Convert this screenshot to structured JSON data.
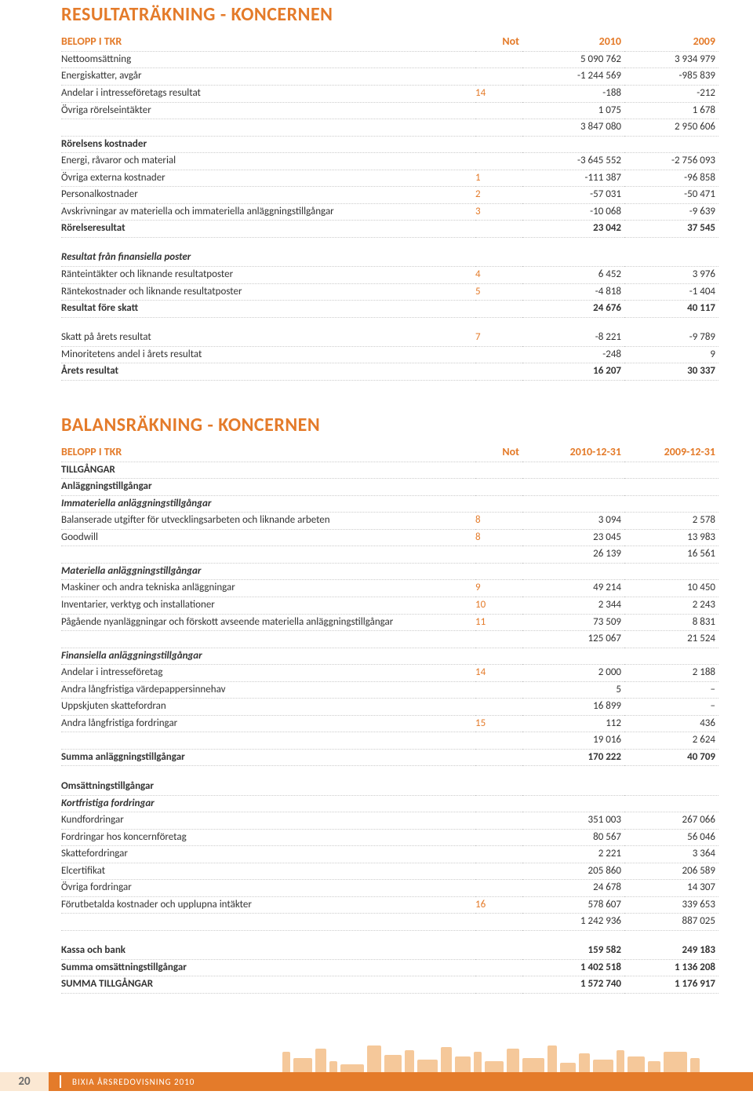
{
  "colors": {
    "accent": "#e47b2a",
    "accent_light": "#fbe8d3",
    "text": "#333333",
    "dotted": "#cccccc",
    "skyline": "#f5c89a"
  },
  "footer": {
    "page_number": "20",
    "text": "BIXIA ÅRSREDOVISNING 2010"
  },
  "income": {
    "title": "RESULTATRÄKNING - KONCERNEN",
    "header": {
      "c1": "BELOPP I TKR",
      "c2": "Not",
      "c3": "2010",
      "c4": "2009"
    },
    "rows": [
      {
        "label": "Nettoomsättning",
        "not": "",
        "v1": "5 090 762",
        "v2": "3 934 979"
      },
      {
        "label": "Energiskatter, avgår",
        "not": "",
        "v1": "-1 244 569",
        "v2": "-985 839"
      },
      {
        "label": "Andelar i intresseföretags resultat",
        "not": "14",
        "v1": "-188",
        "v2": "-212"
      },
      {
        "label": "Övriga rörelseintäkter",
        "not": "",
        "v1": "1 075",
        "v2": "1 678"
      },
      {
        "label": "",
        "not": "",
        "v1": "3 847 080",
        "v2": "2 950 606"
      },
      {
        "label": "Rörelsens kostnader",
        "bold": true
      },
      {
        "label": "Energi, råvaror och material",
        "not": "",
        "v1": "-3 645 552",
        "v2": "-2 756 093"
      },
      {
        "label": "Övriga externa kostnader",
        "not": "1",
        "v1": "-111 387",
        "v2": "-96 858"
      },
      {
        "label": "Personalkostnader",
        "not": "2",
        "v1": "-57 031",
        "v2": "-50 471"
      },
      {
        "label": "Avskrivningar av materiella och immateriella anläggningstillgångar",
        "not": "3",
        "v1": "-10 068",
        "v2": "-9 639"
      },
      {
        "label": "Rörelseresultat",
        "not": "",
        "v1": "23 042",
        "v2": "37 545",
        "bold": true
      },
      {
        "spacer": true
      },
      {
        "label": "Resultat från finansiella poster",
        "italic": true
      },
      {
        "label": "Ränteintäkter och liknande resultatposter",
        "not": "4",
        "v1": "6 452",
        "v2": "3 976"
      },
      {
        "label": "Räntekostnader och liknande resultatposter",
        "not": "5",
        "v1": "-4 818",
        "v2": "-1 404"
      },
      {
        "label": "Resultat före skatt",
        "not": "",
        "v1": "24 676",
        "v2": "40 117",
        "bold": true
      },
      {
        "spacer": true
      },
      {
        "label": "Skatt på årets resultat",
        "not": "7",
        "v1": "-8 221",
        "v2": "-9 789"
      },
      {
        "label": "Minoritetens andel i årets resultat",
        "not": "",
        "v1": "-248",
        "v2": "9"
      },
      {
        "label": "Årets resultat",
        "not": "",
        "v1": "16 207",
        "v2": "30 337",
        "bold": true
      }
    ]
  },
  "balance": {
    "title": "BALANSRÄKNING - KONCERNEN",
    "header": {
      "c1": "BELOPP I TKR",
      "c2": "Not",
      "c3": "2010-12-31",
      "c4": "2009-12-31"
    },
    "rows": [
      {
        "label": "TILLGÅNGAR",
        "bold": true
      },
      {
        "label": "Anläggningstillgångar",
        "bold": true
      },
      {
        "label": "Immateriella anläggningstillgångar",
        "italic": true
      },
      {
        "label": "Balanserade utgifter för utvecklingsarbeten och liknande arbeten",
        "not": "8",
        "v1": "3 094",
        "v2": "2 578"
      },
      {
        "label": "Goodwill",
        "not": "8",
        "v1": "23 045",
        "v2": "13 983"
      },
      {
        "label": "",
        "not": "",
        "v1": "26 139",
        "v2": "16 561"
      },
      {
        "label": "Materiella anläggningstillgångar",
        "italic": true
      },
      {
        "label": "Maskiner och andra tekniska anläggningar",
        "not": "9",
        "v1": "49 214",
        "v2": "10 450"
      },
      {
        "label": "Inventarier, verktyg och installationer",
        "not": "10",
        "v1": "2 344",
        "v2": "2 243"
      },
      {
        "label": "Pågående nyanläggningar och förskott avseende materiella anläggningstillgångar",
        "not": "11",
        "v1": "73 509",
        "v2": "8 831"
      },
      {
        "label": "",
        "not": "",
        "v1": "125 067",
        "v2": "21 524"
      },
      {
        "label": "Finansiella anläggningstillgångar",
        "italic": true
      },
      {
        "label": "Andelar i intresseföretag",
        "not": "14",
        "v1": "2 000",
        "v2": "2 188"
      },
      {
        "label": "Andra långfristiga värdepappersinnehav",
        "not": "",
        "v1": "5",
        "v2": "–"
      },
      {
        "label": "Uppskjuten skattefordran",
        "not": "",
        "v1": "16 899",
        "v2": "–"
      },
      {
        "label": "Andra långfristiga fordringar",
        "not": "15",
        "v1": "112",
        "v2": "436"
      },
      {
        "label": "",
        "not": "",
        "v1": "19 016",
        "v2": "2 624"
      },
      {
        "label": "Summa anläggningstillgångar",
        "not": "",
        "v1": "170 222",
        "v2": "40 709",
        "bold": true
      },
      {
        "spacer": true
      },
      {
        "label": "Omsättningstillgångar",
        "bold": true
      },
      {
        "label": "Kortfristiga fordringar",
        "italic": true
      },
      {
        "label": "Kundfordringar",
        "not": "",
        "v1": "351 003",
        "v2": "267 066"
      },
      {
        "label": "Fordringar hos koncernföretag",
        "not": "",
        "v1": "80 567",
        "v2": "56 046"
      },
      {
        "label": "Skattefordringar",
        "not": "",
        "v1": "2 221",
        "v2": "3 364"
      },
      {
        "label": "Elcertifikat",
        "not": "",
        "v1": "205 860",
        "v2": "206 589"
      },
      {
        "label": "Övriga fordringar",
        "not": "",
        "v1": "24 678",
        "v2": "14 307"
      },
      {
        "label": "Förutbetalda kostnader och upplupna intäkter",
        "not": "16",
        "v1": "578 607",
        "v2": "339 653"
      },
      {
        "label": "",
        "not": "",
        "v1": "1 242 936",
        "v2": "887 025"
      },
      {
        "spacer": true
      },
      {
        "label": "Kassa och bank",
        "not": "",
        "v1": "159 582",
        "v2": "249 183",
        "bold": true
      },
      {
        "label": "Summa omsättningstillgångar",
        "not": "",
        "v1": "1 402 518",
        "v2": "1 136 208",
        "bold": true
      },
      {
        "label": "SUMMA TILLGÅNGAR",
        "not": "",
        "v1": "1 572 740",
        "v2": "1 176 917",
        "bold": true
      }
    ]
  }
}
